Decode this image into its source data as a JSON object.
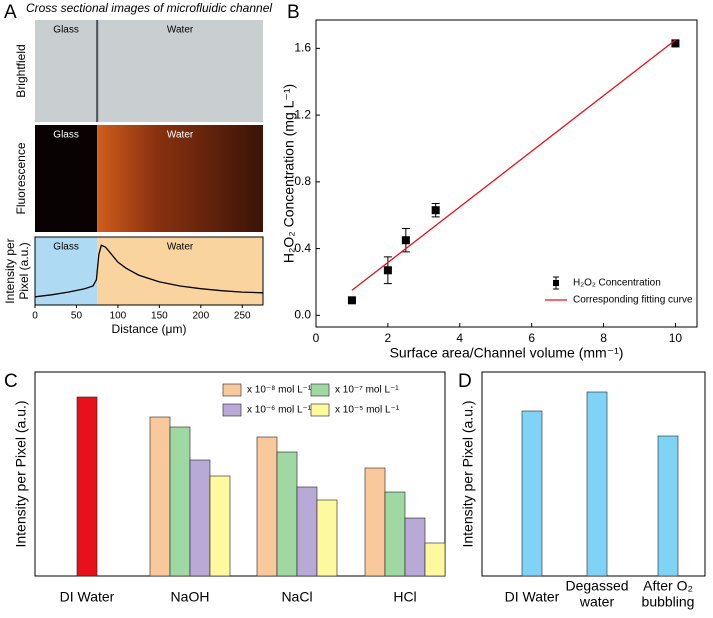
{
  "chart_data": [
    {
      "panel": "A",
      "type": "line",
      "title": "Cross sectional images of microfluidic channel",
      "images": [
        {
          "label": "Brightfield",
          "regions": [
            "Glass",
            "Water"
          ]
        },
        {
          "label": "Fluorescence",
          "regions": [
            "Glass",
            "Water"
          ]
        }
      ],
      "regions": [
        {
          "label": "Glass",
          "x": [
            0,
            75
          ],
          "color": "#aedbf3"
        },
        {
          "label": "Water",
          "x": [
            75,
            275
          ],
          "color": "#f9d49e"
        }
      ],
      "x": [
        0,
        20,
        40,
        60,
        70,
        74,
        77,
        80,
        85,
        90,
        100,
        110,
        125,
        150,
        175,
        200,
        225,
        250,
        275
      ],
      "values": [
        0.12,
        0.15,
        0.19,
        0.24,
        0.28,
        0.37,
        0.74,
        0.88,
        0.85,
        0.78,
        0.63,
        0.54,
        0.44,
        0.34,
        0.28,
        0.24,
        0.21,
        0.19,
        0.18
      ],
      "color": "#000000",
      "xlim": [
        0,
        275
      ],
      "xticks": [
        0,
        50,
        100,
        150,
        200,
        250
      ],
      "ylim": [
        0,
        1
      ],
      "xlabel": "Distance (μm)",
      "ylabel": [
        "Intensity per",
        "Pixel (a.u.)"
      ]
    },
    {
      "panel": "B",
      "type": "scatter",
      "xlabel": "Surface area/Channel volume (mm⁻¹)",
      "ylabel": "H₂O₂ Concentration (mg L⁻¹)",
      "xlim": [
        0,
        10.6
      ],
      "xticks": [
        0,
        2,
        4,
        6,
        8,
        10
      ],
      "ylim": [
        -0.07,
        1.77
      ],
      "yticks": [
        {
          "value": 0,
          "label": "0.0"
        },
        0.4,
        0.8,
        1.2,
        1.6
      ],
      "legend": "lower right",
      "series": [
        {
          "name": "H₂O₂ Concentration",
          "color": "#000000",
          "style": "marker",
          "x": [
            1,
            2,
            2.5,
            3.33,
            10
          ],
          "values": [
            0.09,
            0.27,
            0.45,
            0.63,
            1.63
          ],
          "errors": [
            0.01,
            0.08,
            0.07,
            0.04,
            0.02
          ]
        },
        {
          "name": "Corresponding fitting curve",
          "color": "#e8101a",
          "style": "line",
          "x": [
            1,
            10
          ],
          "values": [
            0.15,
            1.65
          ]
        }
      ]
    },
    {
      "panel": "C",
      "type": "bar",
      "ylabel": "Intensity per Pixel (a.u.)",
      "categories": [
        [
          "DI Water"
        ],
        [
          "NaOH"
        ],
        [
          "NaCl"
        ],
        [
          "HCl"
        ]
      ],
      "ylim": [
        0,
        204
      ],
      "series": [
        {
          "color": "#e8101a",
          "values": [
            179,
            null,
            null,
            null
          ]
        },
        {
          "name": "x 10⁻⁸ mol L⁻¹",
          "color": "#f9c89b",
          "values": [
            null,
            159,
            139,
            108
          ]
        },
        {
          "name": "x 10⁻⁷ mol L⁻¹",
          "color": "#9fd8a2",
          "values": [
            null,
            149,
            124,
            84
          ]
        },
        {
          "name": "x 10⁻⁶ mol L⁻¹",
          "color": "#b9a9d6",
          "values": [
            null,
            116,
            89,
            58
          ]
        },
        {
          "name": "x 10⁻⁵ mol L⁻¹",
          "color": "#fcf99e",
          "values": [
            null,
            100,
            76,
            33
          ]
        }
      ]
    },
    {
      "panel": "D",
      "type": "bar",
      "ylabel": "Intensity per Pixel (a.u.)",
      "categories": [
        [
          "DI Water"
        ],
        [
          "Degassed",
          "water"
        ],
        [
          "After O₂",
          "bubbling"
        ]
      ],
      "ylim": [
        0,
        204
      ],
      "series": [
        {
          "color": "#7fd3f7",
          "values": [
            165,
            184,
            140
          ]
        }
      ]
    }
  ]
}
